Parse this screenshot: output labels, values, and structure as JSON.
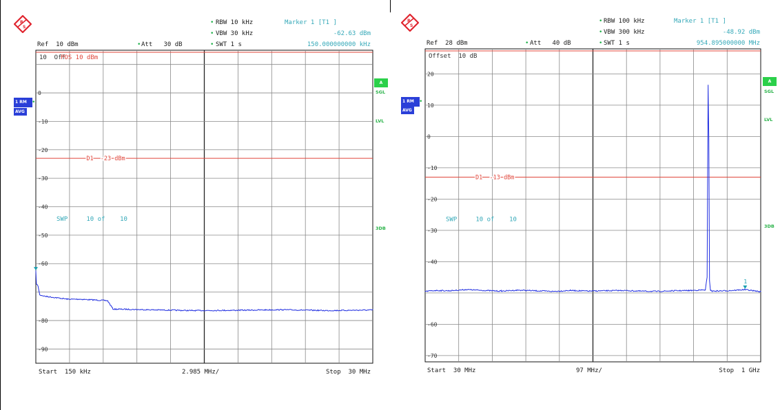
{
  "colors": {
    "trace": "#1f2de0",
    "limit_line": "#e0453a",
    "grid": "#888888",
    "cyan_text": "#34a8b8",
    "green_label": "#2bb34a",
    "logo_red": "#e0252f"
  },
  "chart_data": [
    {
      "type": "line",
      "header": {
        "rbw": "RBW 10 kHz",
        "vbw": "VBW 30 kHz",
        "swt": "SWT 1 s",
        "att": "Att   30 dB",
        "ref": "Ref  10 dBm",
        "marker_title": "Marker 1 [T1 ]",
        "marker_level": "-62.63 dBm",
        "marker_freq": "150.000000000 kHz"
      },
      "offset_text": "10  Off",
      "pos_text": "POS 10 dBm",
      "trace_box": "1 RM",
      "trace_mode": "AVG",
      "side_labels": {
        "a": "A",
        "sgl": "SGL",
        "lvl": "LVL",
        "db3": "3DB"
      },
      "limit_line": {
        "label": "D1  -23 dBm",
        "value": -23
      },
      "sweep_text": "SWP     10 of    10",
      "footer": {
        "start": "Start  150 kHz",
        "span": "2.985 MHz/",
        "stop": "Stop  30 MHz"
      },
      "ylim": [
        -95,
        15
      ],
      "y_ticks": [
        {
          "value": 10,
          "label": ""
        },
        {
          "value": 0,
          "label": "0"
        },
        {
          "value": -10,
          "label": "-10"
        },
        {
          "value": -20,
          "label": "-20"
        },
        {
          "value": -30,
          "label": "-30"
        },
        {
          "value": -40,
          "label": "-40"
        },
        {
          "value": -50,
          "label": "-50"
        },
        {
          "value": -60,
          "label": "-60"
        },
        {
          "value": -70,
          "label": ""
        },
        {
          "value": -80,
          "label": "-80"
        },
        {
          "value": -90,
          "label": "-90"
        }
      ],
      "xlim": [
        0.15,
        30
      ],
      "series": [
        {
          "x": [
            0.15,
            0.2,
            0.35,
            0.5,
            1.0,
            2.0,
            3.0,
            4.0,
            6.5,
            7.0,
            7.5,
            10,
            14,
            18,
            22,
            26,
            30
          ],
          "y": [
            -62.6,
            -67,
            -68,
            -71,
            -71.5,
            -72,
            -72.5,
            -72.5,
            -73,
            -76,
            -76,
            -76.2,
            -76.5,
            -76.4,
            -76.2,
            -76.5,
            -76.3
          ]
        }
      ],
      "marker": {
        "x": 0.15,
        "y": -62.63,
        "label": ""
      }
    },
    {
      "type": "line",
      "header": {
        "rbw": "RBW 100 kHz",
        "vbw": "VBW 300 kHz",
        "swt": "SWT 1 s",
        "att": "Att   40 dB",
        "ref": "Ref  28 dBm",
        "marker_title": "Marker 1 [T1 ]",
        "marker_level": "-48.92 dBm",
        "marker_freq": "954.895000000 MHz"
      },
      "offset_text": "Offset  10 dB",
      "pos_text": "",
      "trace_box": "1 RM",
      "trace_mode": "AVG",
      "side_labels": {
        "a": "A",
        "sgl": "SGL",
        "lvl": "LVL",
        "db3": "3DB"
      },
      "limit_line": {
        "label": "D1  -13 dBm",
        "value": -13
      },
      "sweep_text": "SWP     10 of    10",
      "footer": {
        "start": "Start  30 MHz",
        "span": "97 MHz/",
        "stop": "Stop  1 GHz"
      },
      "ylim": [
        -72,
        28
      ],
      "y_ticks": [
        {
          "value": 20,
          "label": "20"
        },
        {
          "value": 10,
          "label": "10"
        },
        {
          "value": 0,
          "label": "0"
        },
        {
          "value": -10,
          "label": "-10"
        },
        {
          "value": -20,
          "label": "-20"
        },
        {
          "value": -30,
          "label": "-30"
        },
        {
          "value": -40,
          "label": "-40"
        },
        {
          "value": -50,
          "label": ""
        },
        {
          "value": -60,
          "label": "-60"
        },
        {
          "value": -70,
          "label": "-70"
        }
      ],
      "xlim": [
        30,
        1000
      ],
      "series": [
        {
          "x": [
            30,
            60,
            100,
            150,
            200,
            250,
            300,
            350,
            400,
            450,
            500,
            550,
            600,
            650,
            700,
            750,
            800,
            840,
            845,
            848,
            850,
            852,
            855,
            860,
            900,
            954.9,
            1000
          ],
          "y": [
            -49.5,
            -49.2,
            -49.3,
            -48.9,
            -49.2,
            -49.4,
            -49.1,
            -49.3,
            -49.5,
            -49.2,
            -49.4,
            -49.3,
            -49.2,
            -49.4,
            -49.5,
            -49.3,
            -49.2,
            -49.0,
            -45,
            16.5,
            -0.5,
            -46,
            -49.2,
            -49.4,
            -49.3,
            -48.92,
            -49.6
          ]
        }
      ],
      "marker": {
        "x": 954.895,
        "y": -48.92,
        "label": "1"
      }
    }
  ]
}
